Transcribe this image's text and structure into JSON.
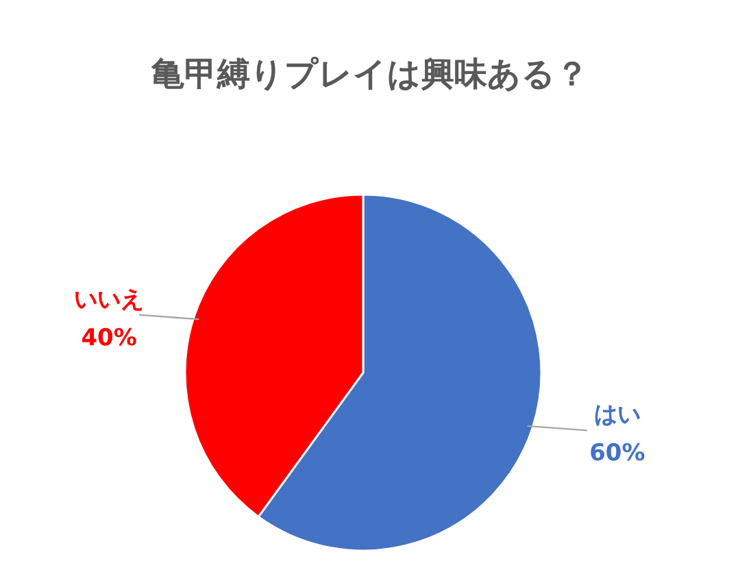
{
  "chart_data": {
    "type": "pie",
    "title": "亀甲縛りプレイは興味ある？",
    "categories": [
      "はい",
      "いいえ"
    ],
    "values": [
      60,
      40
    ],
    "colors": [
      "#4472c4",
      "#ff0000"
    ],
    "value_labels": [
      "60%",
      "40%"
    ]
  }
}
